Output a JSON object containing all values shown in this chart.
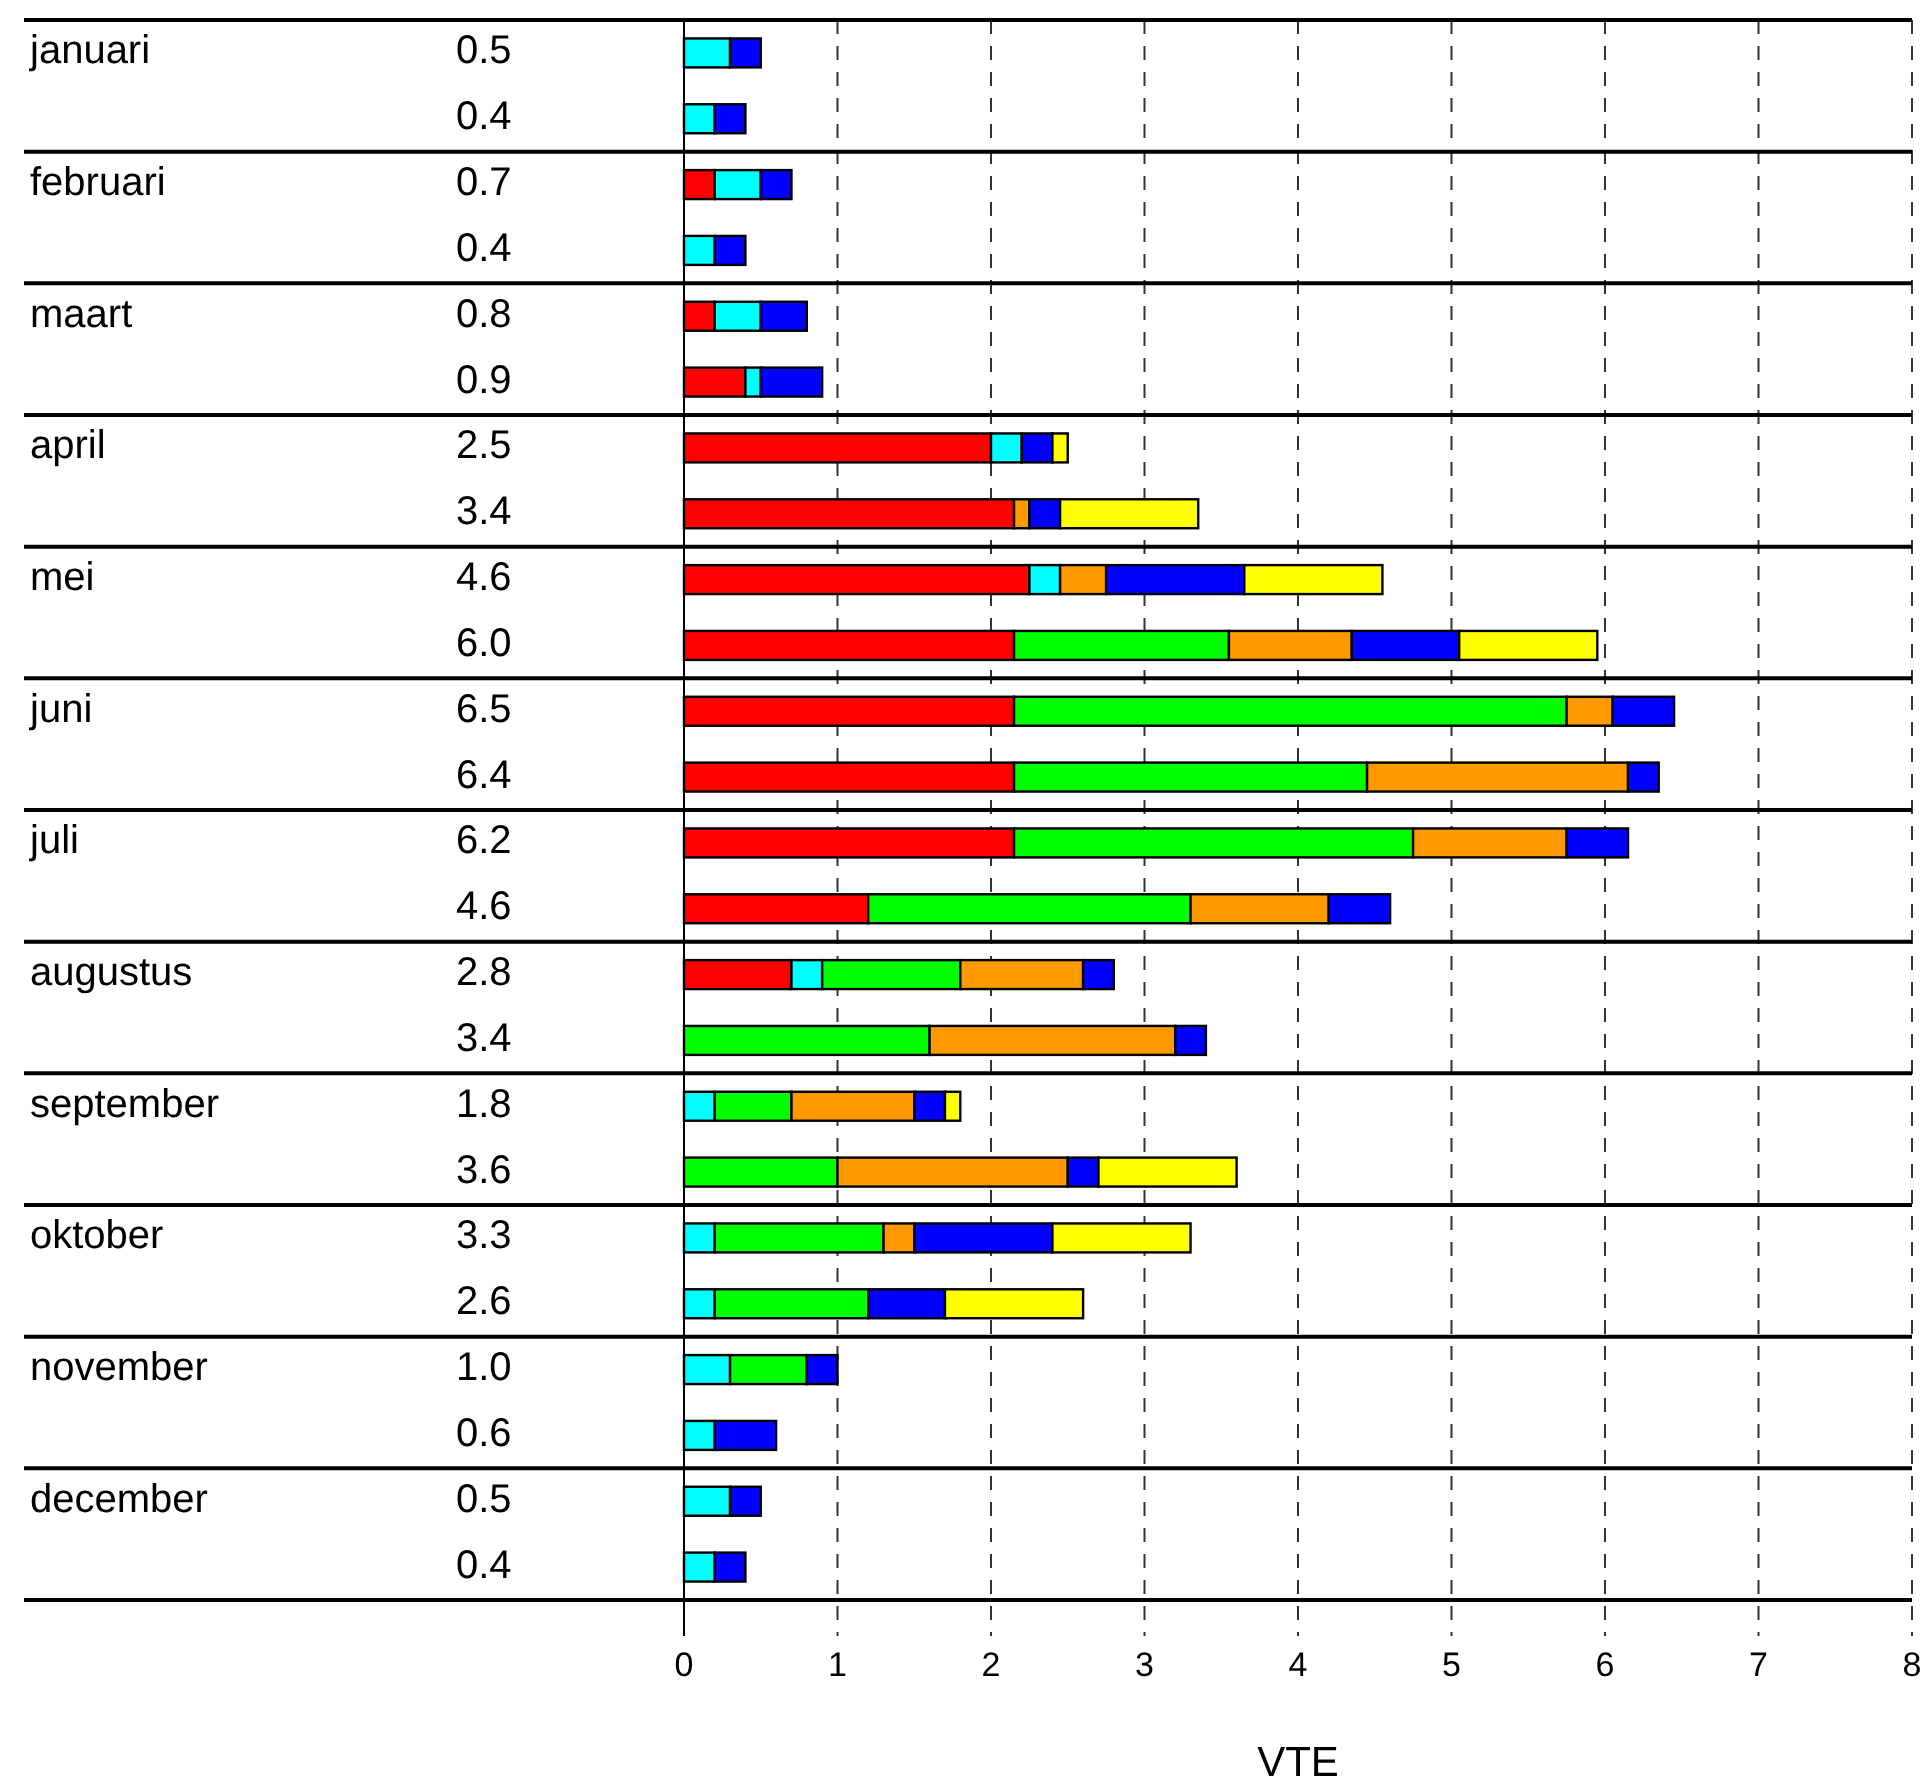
{
  "chart_data": {
    "type": "bar",
    "orientation": "horizontal",
    "stacked": true,
    "xlabel": "VTE",
    "annotations": [
      "januari",
      "februari",
      "maart",
      "april",
      "mei",
      "juni",
      "juli",
      "augustus",
      "september",
      "oktober",
      "november",
      "december"
    ],
    "categories": [
      "0.5",
      "0.4",
      "0.7",
      "0.4",
      "0.8",
      "0.9",
      "2.5",
      "3.4",
      "4.6",
      "6.0",
      "6.5",
      "6.4",
      "6.2",
      "4.6",
      "2.8",
      "3.4",
      "1.8",
      "3.6",
      "3.3",
      "2.6",
      "1.0",
      "0.6",
      "0.5",
      "0.4"
    ],
    "series": [
      {
        "color": "#ff0000",
        "values": [
          null,
          null,
          0.2,
          null,
          0.2,
          0.4,
          2.0,
          2.15,
          2.25,
          2.15,
          2.15,
          2.15,
          2.15,
          1.2,
          0.7,
          null,
          null,
          null,
          null,
          null,
          null,
          null,
          null,
          null
        ]
      },
      {
        "color": "#00ffff",
        "values": [
          0.3,
          0.2,
          0.3,
          0.2,
          0.3,
          0.1,
          0.2,
          null,
          0.2,
          null,
          null,
          null,
          null,
          null,
          0.2,
          null,
          0.2,
          null,
          0.2,
          0.2,
          0.3,
          0.2,
          0.3,
          0.2
        ]
      },
      {
        "color": "#00ff00",
        "values": [
          null,
          null,
          null,
          null,
          null,
          null,
          null,
          null,
          null,
          1.4,
          3.6,
          2.3,
          2.6,
          2.1,
          0.9,
          1.6,
          0.5,
          1.0,
          1.1,
          1.0,
          0.5,
          null,
          null,
          null
        ]
      },
      {
        "color": "#ff9900",
        "values": [
          null,
          null,
          null,
          null,
          null,
          null,
          null,
          0.1,
          0.3,
          0.8,
          0.3,
          1.7,
          1.0,
          0.9,
          0.8,
          1.6,
          0.8,
          1.5,
          0.2,
          null,
          null,
          null,
          null,
          null
        ]
      },
      {
        "color": "#0000ff",
        "values": [
          0.2,
          0.2,
          0.2,
          0.2,
          0.3,
          0.4,
          0.2,
          0.2,
          0.9,
          0.7,
          0.4,
          0.2,
          0.4,
          0.4,
          0.2,
          0.2,
          0.2,
          0.2,
          0.9,
          0.5,
          0.2,
          0.4,
          0.2,
          0.2
        ]
      },
      {
        "color": "#ffff00",
        "values": [
          null,
          null,
          null,
          null,
          null,
          null,
          0.1,
          0.9,
          0.9,
          0.9,
          null,
          null,
          null,
          null,
          null,
          null,
          0.1,
          0.9,
          0.9,
          0.9,
          null,
          null,
          null,
          null
        ]
      }
    ],
    "xlim": [
      0,
      8
    ],
    "xticks": [
      0,
      1,
      2,
      3,
      4,
      5,
      6,
      7,
      8
    ],
    "grid": true
  }
}
